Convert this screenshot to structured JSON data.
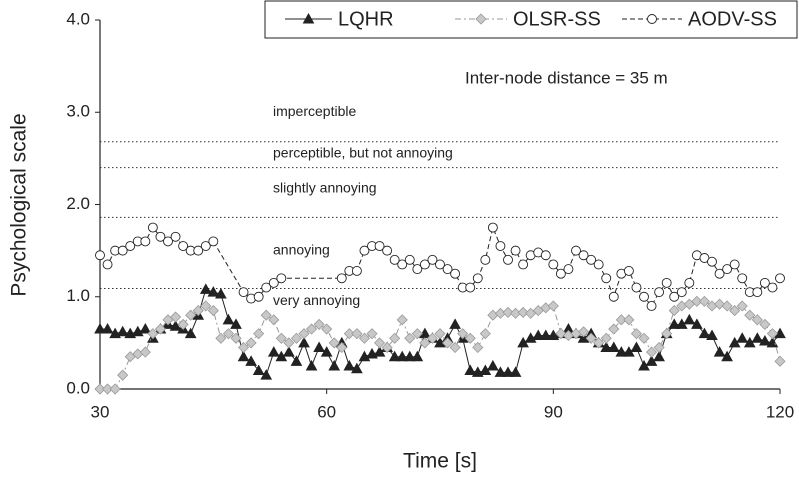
{
  "chart_data": {
    "type": "line",
    "x_label": "Time [s]",
    "y_label": "Psychological scale",
    "annotation": "Inter-node distance = 35 m",
    "xlim": [
      30,
      120
    ],
    "xticks": [
      30,
      60,
      90,
      120
    ],
    "ylim": [
      0,
      4
    ],
    "yticks": [
      {
        "value": 0,
        "label": "0.0"
      },
      {
        "value": 1,
        "label": "1.0"
      },
      {
        "value": 2,
        "label": "2.0"
      },
      {
        "value": 3,
        "label": "3.0"
      },
      {
        "value": 4,
        "label": "4.0"
      }
    ],
    "threshold_lines": [
      2.68,
      2.4,
      1.86,
      1.09
    ],
    "region_labels": [
      {
        "label": "imperceptible",
        "y": 3.0
      },
      {
        "label": "perceptible, but not annoying",
        "y": 2.55
      },
      {
        "label": "slightly annoying",
        "y": 2.17
      },
      {
        "label": "annoying",
        "y": 1.5
      },
      {
        "label": "very annoying",
        "y": 0.95
      }
    ],
    "x": [
      30,
      31,
      32,
      33,
      34,
      35,
      36,
      37,
      38,
      39,
      40,
      41,
      42,
      43,
      44,
      45,
      46,
      47,
      48,
      49,
      50,
      51,
      52,
      53,
      54,
      55,
      56,
      57,
      58,
      59,
      60,
      61,
      62,
      63,
      64,
      65,
      66,
      67,
      68,
      69,
      70,
      71,
      72,
      73,
      74,
      75,
      76,
      77,
      78,
      79,
      80,
      81,
      82,
      83,
      84,
      85,
      86,
      87,
      88,
      89,
      90,
      91,
      92,
      93,
      94,
      95,
      96,
      97,
      98,
      99,
      100,
      101,
      102,
      103,
      104,
      105,
      106,
      107,
      108,
      109,
      110,
      111,
      112,
      113,
      114,
      115,
      116,
      117,
      118,
      119,
      120
    ],
    "series": [
      {
        "name": "LQHR",
        "color": "#222222",
        "marker": "triangle",
        "dash": "none",
        "values": [
          0.65,
          0.65,
          0.6,
          0.62,
          0.6,
          0.62,
          0.65,
          0.55,
          0.65,
          0.7,
          0.68,
          0.65,
          0.6,
          0.8,
          1.08,
          1.05,
          1.03,
          0.75,
          0.7,
          0.35,
          0.3,
          0.2,
          0.15,
          0.4,
          0.35,
          0.4,
          0.3,
          0.5,
          0.25,
          0.45,
          0.4,
          0.25,
          0.5,
          0.25,
          0.22,
          0.35,
          0.38,
          0.4,
          0.45,
          0.35,
          0.35,
          0.35,
          0.35,
          0.6,
          0.55,
          0.5,
          0.55,
          0.7,
          0.55,
          0.2,
          0.18,
          0.2,
          0.25,
          0.18,
          0.18,
          0.18,
          0.5,
          0.55,
          0.58,
          0.58,
          0.58,
          0.6,
          0.65,
          0.6,
          0.55,
          0.6,
          0.5,
          0.45,
          0.45,
          0.4,
          0.4,
          0.45,
          0.25,
          0.3,
          0.35,
          0.6,
          0.7,
          0.7,
          0.75,
          0.7,
          0.6,
          0.58,
          0.4,
          0.35,
          0.5,
          0.55,
          0.5,
          0.55,
          0.52,
          0.5,
          0.6
        ]
      },
      {
        "name": "OLSR-SS",
        "color": "#999999",
        "marker": "diamond",
        "dash": "6 3 2 3",
        "values": [
          0,
          0,
          0,
          0.15,
          0.35,
          0.38,
          0.4,
          0.6,
          0.65,
          0.75,
          0.78,
          0.7,
          0.8,
          0.85,
          0.9,
          0.85,
          0.55,
          0.6,
          0.55,
          0.45,
          0.5,
          0.6,
          0.8,
          0.75,
          0.55,
          0.5,
          0.55,
          0.6,
          0.65,
          0.7,
          0.65,
          0.5,
          0.45,
          0.6,
          0.6,
          0.55,
          0.6,
          0.5,
          0.45,
          0.55,
          0.75,
          0.55,
          0.6,
          0.5,
          0.55,
          0.6,
          0.5,
          0.45,
          0.6,
          0.55,
          0.45,
          0.6,
          0.8,
          0.82,
          0.83,
          0.82,
          0.83,
          0.82,
          0.85,
          0.88,
          0.9,
          0.6,
          0.58,
          0.6,
          0.62,
          0.55,
          0.5,
          0.55,
          0.65,
          0.75,
          0.75,
          0.6,
          0.55,
          0.4,
          0.45,
          0.6,
          0.85,
          0.9,
          0.92,
          0.95,
          0.95,
          0.9,
          0.92,
          0.9,
          0.85,
          0.9,
          0.8,
          0.75,
          0.7,
          0.6,
          0.3
        ]
      },
      {
        "name": "AODV-SS",
        "color": "#222222",
        "marker": "circle",
        "dash": "5 3",
        "x": [
          30,
          31,
          32,
          33,
          34,
          35,
          36,
          37,
          38,
          39,
          40,
          41,
          42,
          43,
          44,
          45,
          49,
          50,
          51,
          52,
          53,
          54,
          62,
          63,
          64,
          65,
          66,
          67,
          68,
          69,
          70,
          71,
          72,
          73,
          74,
          75,
          76,
          77,
          78,
          79,
          80,
          81,
          82,
          83,
          84,
          85,
          86,
          87,
          88,
          89,
          90,
          91,
          92,
          93,
          94,
          95,
          96,
          97,
          98,
          99,
          100,
          101,
          102,
          103,
          104,
          105,
          106,
          107,
          108,
          109,
          110,
          111,
          112,
          113,
          114,
          115,
          116,
          117,
          118,
          119,
          120
        ],
        "values": [
          1.45,
          1.35,
          1.5,
          1.5,
          1.55,
          1.6,
          1.6,
          1.75,
          1.65,
          1.6,
          1.65,
          1.55,
          1.5,
          1.5,
          1.55,
          1.6,
          1.05,
          0.98,
          1.0,
          1.1,
          1.15,
          1.2,
          1.2,
          1.28,
          1.28,
          1.5,
          1.55,
          1.55,
          1.5,
          1.4,
          1.35,
          1.4,
          1.3,
          1.35,
          1.4,
          1.35,
          1.3,
          1.25,
          1.1,
          1.1,
          1.2,
          1.4,
          1.75,
          1.55,
          1.4,
          1.5,
          1.35,
          1.45,
          1.48,
          1.45,
          1.35,
          1.25,
          1.3,
          1.5,
          1.45,
          1.4,
          1.35,
          1.2,
          1.0,
          1.25,
          1.28,
          1.1,
          1.0,
          0.9,
          1.05,
          1.15,
          1.0,
          1.05,
          1.15,
          1.45,
          1.42,
          1.38,
          1.25,
          1.3,
          1.35,
          1.2,
          1.05,
          1.05,
          1.15,
          1.1,
          1.2
        ]
      }
    ]
  }
}
